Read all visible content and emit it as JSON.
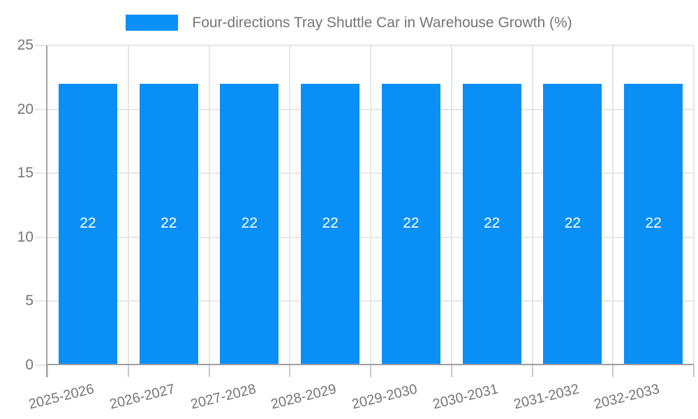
{
  "chart_data": {
    "type": "bar",
    "title": "Four-directions Tray Shuttle Car in Warehouse Growth (%)",
    "categories": [
      "2025-2026",
      "2026-2027",
      "2027-2028",
      "2028-2029",
      "2029-2030",
      "2030-2031",
      "2031-2032",
      "2032-2033"
    ],
    "values": [
      22,
      22,
      22,
      22,
      22,
      22,
      22,
      22
    ],
    "bar_labels": [
      "22",
      "22",
      "22",
      "22",
      "22",
      "22",
      "22",
      "22"
    ],
    "xlabel": "",
    "ylabel": "",
    "ylim": [
      0,
      25
    ],
    "yticks": [
      0,
      5,
      10,
      15,
      20,
      25
    ],
    "grid": "on",
    "legend_position": "top-center"
  },
  "colors": {
    "bar": "#0A8FF7",
    "bar_value_text": "#FFFFFF",
    "title_text": "#757575",
    "axis_text": "#757575",
    "grid_line": "#E6E6E6",
    "axis_line": "#A3A3A3",
    "baseline": "#9E9E9E",
    "tick_line": "#C9C9C9",
    "background": "#FFFFFF"
  }
}
